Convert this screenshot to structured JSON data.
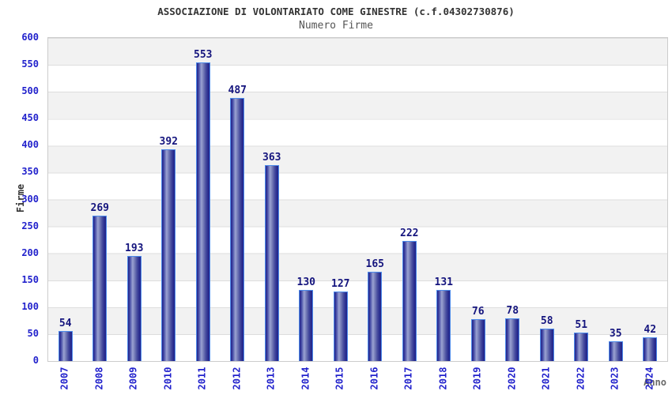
{
  "chart_data": {
    "type": "bar",
    "title": "ASSOCIAZIONE DI VOLONTARIATO COME GINESTRE (c.f.04302730876)",
    "subtitle": "Numero Firme",
    "xlabel": "Anno",
    "ylabel": "Firme",
    "categories": [
      "2007",
      "2008",
      "2009",
      "2010",
      "2011",
      "2012",
      "2013",
      "2014",
      "2015",
      "2016",
      "2017",
      "2018",
      "2019",
      "2020",
      "2021",
      "2022",
      "2023",
      "2024"
    ],
    "values": [
      54,
      269,
      193,
      392,
      553,
      487,
      363,
      130,
      127,
      165,
      222,
      131,
      76,
      78,
      58,
      51,
      35,
      42
    ],
    "ylim": [
      0,
      600
    ],
    "ytick_step": 50,
    "yticks": [
      0,
      50,
      100,
      150,
      200,
      250,
      300,
      350,
      400,
      450,
      500,
      550,
      600
    ],
    "legend": null,
    "grid": "horizontal gridlines every 50 with alternating white/gray bands",
    "colors": {
      "bar_fill_dark": "#23238a",
      "bar_fill_light": "#9aa2d2",
      "bar_border": "#4d8bea",
      "value_label": "#15157e",
      "axis_tick_label": "#2222cc",
      "band_gray": "#f2f2f2",
      "gridline": "#dddddd",
      "plot_border": "#cccccc",
      "title_color": "#333333",
      "subtitle_color": "#555555",
      "xlabel_color": "#696969"
    }
  }
}
